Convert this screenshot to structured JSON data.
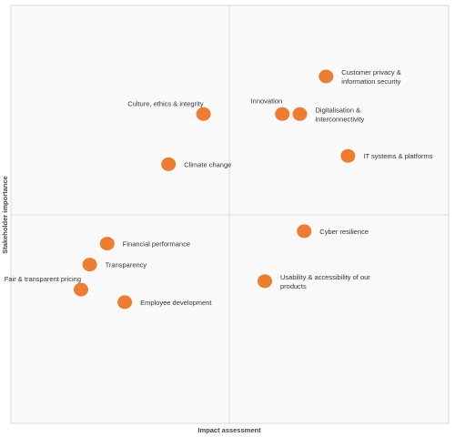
{
  "chart_data": {
    "type": "scatter",
    "title": "",
    "xlabel": "Impact assessment",
    "ylabel": "Stakeholder importance",
    "xlim": [
      0,
      10
    ],
    "ylim": [
      0,
      10
    ],
    "grid": false,
    "quadrant_divider": [
      5,
      5
    ],
    "marker_color": "#ED7D31",
    "points": [
      {
        "label": "Customer privacy & information security",
        "lines": [
          "Customer privacy &",
          "information security"
        ],
        "x": 7.2,
        "y": 8.3,
        "side": "right"
      },
      {
        "label": "Culture, ethics & integrity",
        "lines": [
          "Culture, ethics & integrity"
        ],
        "x": 4.4,
        "y": 7.4,
        "side": "above-left"
      },
      {
        "label": "Innovation",
        "lines": [
          "Innovation"
        ],
        "x": 6.2,
        "y": 7.4,
        "side": "above"
      },
      {
        "label": "Digitalisation & interconnectivity",
        "lines": [
          "Digitalisation &",
          "interconnectivity"
        ],
        "x": 6.6,
        "y": 7.4,
        "side": "right"
      },
      {
        "label": "Climate change",
        "lines": [
          "Climate change"
        ],
        "x": 3.6,
        "y": 6.2,
        "side": "right"
      },
      {
        "label": "IT systems & platforms",
        "lines": [
          "IT systems & platforms"
        ],
        "x": 7.7,
        "y": 6.4,
        "side": "right"
      },
      {
        "label": "Cyber resilience",
        "lines": [
          "Cyber resilience"
        ],
        "x": 6.7,
        "y": 4.6,
        "side": "right"
      },
      {
        "label": "Financial performance",
        "lines": [
          "Financial performance"
        ],
        "x": 2.2,
        "y": 4.3,
        "side": "right"
      },
      {
        "label": "Transparency",
        "lines": [
          "Transparency"
        ],
        "x": 1.8,
        "y": 3.8,
        "side": "right"
      },
      {
        "label": "Usability & accessibility of our products",
        "lines": [
          "Usability & accessibility of our",
          "products"
        ],
        "x": 5.8,
        "y": 3.4,
        "side": "right"
      },
      {
        "label": "Fair & transparent pricing",
        "lines": [
          "Fair & transparent pricing"
        ],
        "x": 1.6,
        "y": 3.2,
        "side": "above-left"
      },
      {
        "label": "Employee development",
        "lines": [
          "Employee development"
        ],
        "x": 2.6,
        "y": 2.9,
        "side": "right"
      }
    ]
  }
}
